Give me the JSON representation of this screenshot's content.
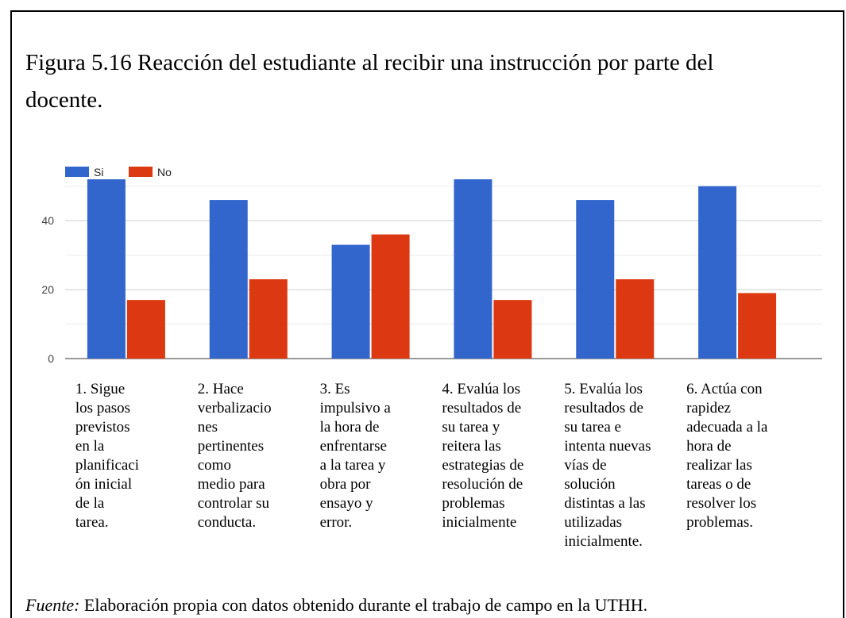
{
  "chart_data": {
    "type": "bar",
    "title": [
      "Figura 5.16 Reacción del estudiante al recibir una instrucción por parte del",
      "docente."
    ],
    "categories": [
      [
        "1. Sigue",
        "los pasos",
        "previstos",
        "en la",
        "planificaci",
        "ón inicial",
        "de la",
        "tarea."
      ],
      [
        "2. Hace",
        "verbalizacio",
        "nes",
        "pertinentes",
        "como",
        "medio para",
        "controlar su",
        "conducta."
      ],
      [
        "3. Es",
        "impulsivo a",
        "la hora de",
        "enfrentarse",
        "a la tarea y",
        "obra por",
        "ensayo y",
        "error."
      ],
      [
        "4. Evalúa los",
        "resultados de",
        "su tarea y",
        "reitera las",
        "estrategias de",
        "resolución de",
        "problemas",
        "inicialmente"
      ],
      [
        "5. Evalúa los",
        "resultados de",
        "su tarea e",
        "intenta nuevas",
        "vías de",
        "solución",
        "distintas a las",
        "utilizadas",
        "inicialmente."
      ],
      [
        "6. Actúa con",
        "rapidez",
        "adecuada a la",
        "hora de",
        "realizar las",
        "tareas o de",
        "resolver los",
        "problemas."
      ]
    ],
    "series": [
      {
        "name": "Si",
        "color": "#3366cc",
        "values": [
          52,
          46,
          33,
          52,
          46,
          50
        ]
      },
      {
        "name": "No",
        "color": "#dc3912",
        "values": [
          17,
          23,
          36,
          17,
          23,
          19
        ]
      }
    ],
    "ylim": [
      0,
      52
    ],
    "yticks": [
      0,
      20,
      40
    ],
    "minor_yticks": [
      10,
      30,
      50
    ],
    "grid": true,
    "legend": "top-left",
    "source_label": "Fuente:",
    "source_text": "Elaboración propia con datos obtenido durante el trabajo de campo en la UTHH."
  }
}
